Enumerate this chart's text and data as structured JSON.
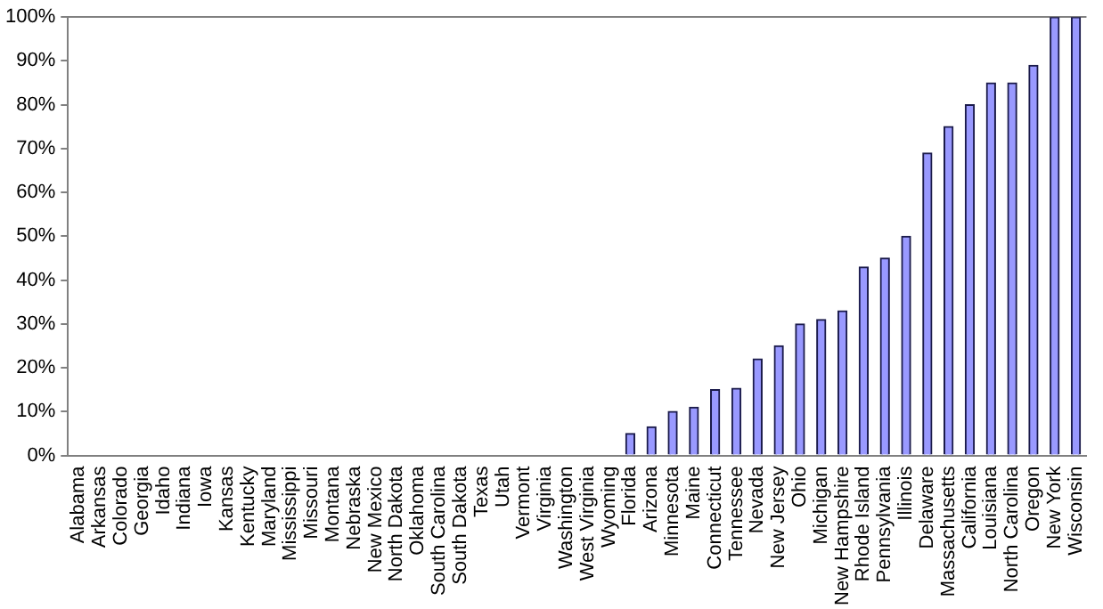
{
  "chart_data": {
    "type": "bar",
    "categories": [
      "Alabama",
      "Arkansas",
      "Colorado",
      "Georgia",
      "Idaho",
      "Indiana",
      "Iowa",
      "Kansas",
      "Kentucky",
      "Maryland",
      "Mississippi",
      "Missouri",
      "Montana",
      "Nebraska",
      "New Mexico",
      "North Dakota",
      "Oklahoma",
      "South Carolina",
      "South Dakota",
      "Texas",
      "Utah",
      "Vermont",
      "Virginia",
      "Washington",
      "West Virginia",
      "Wyoming",
      "Florida",
      "Arizona",
      "Minnesota",
      "Maine",
      "Connecticut",
      "Tennessee",
      "Nevada",
      "New Jersey",
      "Ohio",
      "Michigan",
      "New Hampshire",
      "Rhode Island",
      "Pennsylvania",
      "Illinois",
      "Delaware",
      "Massachusetts",
      "California",
      "Louisiana",
      "North Carolina",
      "Oregon",
      "New York",
      "Wisconsin"
    ],
    "values": [
      0,
      0,
      0,
      0,
      0,
      0,
      0,
      0,
      0,
      0,
      0,
      0,
      0,
      0,
      0,
      0,
      0,
      0,
      0,
      0,
      0,
      0,
      0,
      0,
      0,
      0,
      5,
      6.5,
      10,
      11,
      15,
      15.3,
      22,
      25,
      30,
      31,
      33,
      43,
      45,
      50,
      69,
      75,
      80,
      85,
      85,
      89,
      100,
      100
    ],
    "color": "#9999ff",
    "ylim": [
      0,
      100
    ],
    "yticks": [
      {
        "value": 0,
        "label": "0%"
      },
      {
        "value": 10,
        "label": "10%"
      },
      {
        "value": 20,
        "label": "20%"
      },
      {
        "value": 30,
        "label": "30%"
      },
      {
        "value": 40,
        "label": "40%"
      },
      {
        "value": 50,
        "label": "50%"
      },
      {
        "value": 60,
        "label": "60%"
      },
      {
        "value": 70,
        "label": "70%"
      },
      {
        "value": 80,
        "label": "80%"
      },
      {
        "value": 90,
        "label": "90%"
      },
      {
        "value": 100,
        "label": "100%"
      }
    ],
    "grid": false,
    "legend": false
  }
}
